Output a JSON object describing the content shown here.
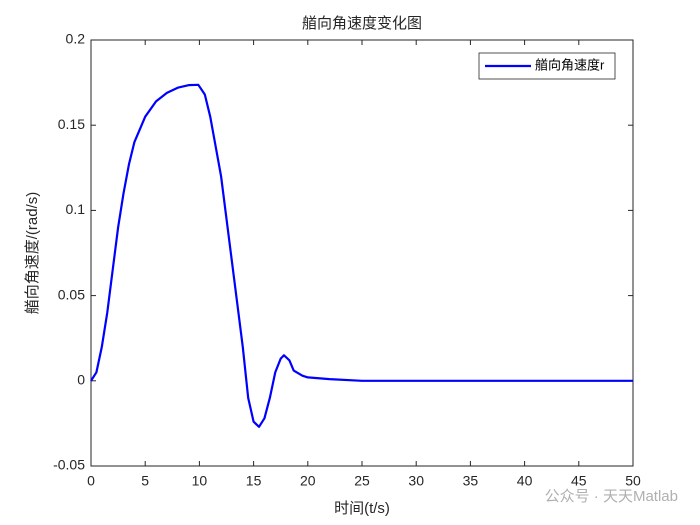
{
  "chart_data": {
    "type": "line",
    "title": "艏向角速度变化图",
    "xlabel": "时间(t/s)",
    "ylabel": "艏向角速度/(rad/s)",
    "watermark": "公众号 · 天天Matlab",
    "xlim": [
      0,
      50
    ],
    "xticks": [
      0,
      5,
      10,
      15,
      20,
      25,
      30,
      35,
      40,
      45,
      50
    ],
    "ylim": [
      -0.05,
      0.2
    ],
    "yticks": [
      -0.05,
      0,
      0.05,
      0.1,
      0.15,
      0.2
    ],
    "legend": "upper right",
    "grid": false,
    "x": [
      0,
      0.5,
      1,
      1.5,
      2,
      2.5,
      3,
      3.5,
      4,
      5,
      6,
      7,
      8,
      9,
      9.9,
      10.5,
      11,
      12,
      13,
      14,
      14.5,
      15,
      15.5,
      16,
      16.5,
      17,
      17.5,
      17.8,
      18.3,
      18.7,
      19.5,
      20,
      22,
      25,
      30,
      40,
      50
    ],
    "series": [
      {
        "name": "艏向角速度r",
        "color": "#0000ff",
        "values": [
          0,
          0.005,
          0.02,
          0.04,
          0.065,
          0.09,
          0.11,
          0.127,
          0.14,
          0.155,
          0.164,
          0.169,
          0.172,
          0.1735,
          0.1737,
          0.168,
          0.155,
          0.12,
          0.07,
          0.02,
          -0.01,
          -0.024,
          -0.027,
          -0.022,
          -0.01,
          0.005,
          0.013,
          0.015,
          0.012,
          0.006,
          0.003,
          0.002,
          0.001,
          0,
          0,
          0,
          0
        ]
      }
    ]
  }
}
